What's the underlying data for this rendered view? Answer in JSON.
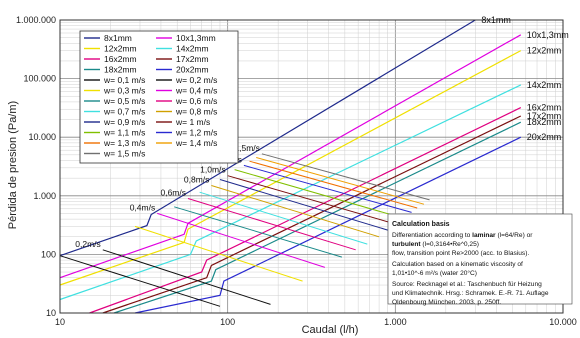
{
  "chart_data": {
    "type": "line",
    "xlabel": "Caudal (l/h)",
    "ylabel": "Pérdida de presion (Pa/m)",
    "x_scale": "log",
    "y_scale": "log",
    "xlim": [
      10,
      10000
    ],
    "ylim": [
      10,
      1000000
    ],
    "grid": true,
    "legend_position": "top-left",
    "x_tick_labels": [
      "10",
      "100",
      "1.000",
      "10.000"
    ],
    "y_tick_labels": [
      "10",
      "100",
      "1.000",
      "10.000",
      "100.000",
      "1.000.000"
    ],
    "series": [
      {
        "name": "8x1mm",
        "color": "#1f2a8c",
        "end_label": "8x1mm",
        "points": [
          [
            10,
            95
          ],
          [
            33,
            310
          ],
          [
            35,
            480
          ],
          [
            3000,
            1000000
          ]
        ]
      },
      {
        "name": "10x1,3mm",
        "color": "#e000e0",
        "end_label": "10x1,3mm",
        "points": [
          [
            10,
            40
          ],
          [
            55,
            220
          ],
          [
            58,
            340
          ],
          [
            5600,
            560000
          ]
        ]
      },
      {
        "name": "12x2mm",
        "color": "#f0e000",
        "end_label": "12x2mm",
        "points": [
          [
            10,
            30
          ],
          [
            55,
            160
          ],
          [
            58,
            270
          ],
          [
            5600,
            300000
          ]
        ]
      },
      {
        "name": "14x2mm",
        "color": "#40e0e0",
        "end_label": "14x2mm",
        "points": [
          [
            10,
            17
          ],
          [
            60,
            100
          ],
          [
            65,
            170
          ],
          [
            5600,
            78000
          ]
        ]
      },
      {
        "name": "16x2mm",
        "color": "#e00080",
        "end_label": "16x2mm",
        "points": [
          [
            15,
            10
          ],
          [
            70,
            50
          ],
          [
            75,
            80
          ],
          [
            5600,
            32000
          ]
        ]
      },
      {
        "name": "17x2mm",
        "color": "#7a1010",
        "end_label": "17x2mm",
        "points": [
          [
            18,
            10
          ],
          [
            75,
            40
          ],
          [
            80,
            65
          ],
          [
            5600,
            23000
          ]
        ]
      },
      {
        "name": "18x2mm",
        "color": "#1a8a8a",
        "end_label": "18x2mm",
        "points": [
          [
            21,
            10
          ],
          [
            80,
            35
          ],
          [
            85,
            55
          ],
          [
            5600,
            18000
          ]
        ]
      },
      {
        "name": "20x2mm",
        "color": "#2a2ad0",
        "end_label": "20x2mm",
        "points": [
          [
            28,
            10
          ],
          [
            90,
            20
          ],
          [
            95,
            35
          ],
          [
            5600,
            10000
          ]
        ]
      }
    ],
    "velocity_lines": [
      {
        "name": "w= 0,1 m/s",
        "color": "#111111",
        "points": [
          [
            10,
            95
          ],
          [
            90,
            13
          ]
        ]
      },
      {
        "name": "w= 0,2 m/s",
        "color": "#111111",
        "label": "0,2m/s",
        "points": [
          [
            18,
            120
          ],
          [
            180,
            14
          ]
        ]
      },
      {
        "name": "w= 0,3 m/s",
        "color": "#f0e000",
        "points": [
          [
            28,
            300
          ],
          [
            280,
            35
          ]
        ]
      },
      {
        "name": "w= 0,4 m/s",
        "color": "#e000e0",
        "label": "0,4m/s",
        "points": [
          [
            38,
            500
          ],
          [
            380,
            60
          ]
        ]
      },
      {
        "name": "w= 0,5 m/s",
        "color": "#1a8a8a",
        "points": [
          [
            48,
            650
          ],
          [
            480,
            90
          ]
        ]
      },
      {
        "name": "w= 0,6 m/s",
        "color": "#e00080",
        "label": "0,6m/s",
        "points": [
          [
            58,
            900
          ],
          [
            580,
            120
          ]
        ]
      },
      {
        "name": "w= 0,7 m/s",
        "color": "#40e0e0",
        "points": [
          [
            68,
            1150
          ],
          [
            680,
            150
          ]
        ]
      },
      {
        "name": "w= 0,8 m/s",
        "color": "#d0a000",
        "label": "0,8m/s",
        "points": [
          [
            80,
            1500
          ],
          [
            800,
            200
          ]
        ]
      },
      {
        "name": "w= 0,9 m/s",
        "color": "#1f2a8c",
        "points": [
          [
            90,
            1900
          ],
          [
            900,
            260
          ]
        ]
      },
      {
        "name": "w= 1 m/s",
        "color": "#7a1010",
        "label": "1,0m/s",
        "points": [
          [
            100,
            2200
          ],
          [
            1000,
            330
          ]
        ]
      },
      {
        "name": "w= 1,1 m/s",
        "color": "#80c000",
        "points": [
          [
            110,
            2800
          ],
          [
            1100,
            420
          ]
        ]
      },
      {
        "name": "w= 1,2 m/s",
        "color": "#2a2ad0",
        "label": "1,2m/s",
        "points": [
          [
            125,
            3300
          ],
          [
            1250,
            520
          ]
        ]
      },
      {
        "name": "w= 1,3 m/s",
        "color": "#f07000",
        "points": [
          [
            135,
            3900
          ],
          [
            1350,
            620
          ]
        ]
      },
      {
        "name": "w= 1,4 m/s",
        "color": "#f0a000",
        "points": [
          [
            148,
            4500
          ],
          [
            1480,
            720
          ]
        ]
      },
      {
        "name": "w= 1,5 m/s",
        "color": "#707070",
        "label": "1,5m/s",
        "points": [
          [
            160,
            5200
          ],
          [
            1600,
            850
          ]
        ]
      }
    ]
  },
  "legend": {
    "left": [
      "8x1mm",
      "12x2mm",
      "16x2mm",
      "18x2mm",
      "w= 0,1 m/s",
      "w= 0,3 m/s",
      "w= 0,5 m/s",
      "w= 0,7 m/s",
      "w= 0,9 m/s",
      "w= 1,1 m/s",
      "w= 1,3 m/s",
      "w= 1,5 m/s"
    ],
    "left_colors": [
      "#1f2a8c",
      "#f0e000",
      "#e00080",
      "#1a8a8a",
      "#111111",
      "#f0e000",
      "#1a8a8a",
      "#40e0e0",
      "#1f2a8c",
      "#80c000",
      "#f07000",
      "#707070"
    ],
    "right": [
      "10x1,3mm",
      "14x2mm",
      "17x2mm",
      "20x2mm",
      "w= 0,2 m/s",
      "w= 0,4 m/s",
      "w= 0,6 m/s",
      "w= 0,8 m/s",
      "w= 1 m/s",
      "w= 1,2 m/s",
      "w= 1,4 m/s"
    ],
    "right_colors": [
      "#e000e0",
      "#40e0e0",
      "#7a1010",
      "#2a2ad0",
      "#111111",
      "#e000e0",
      "#e00080",
      "#d0a000",
      "#7a1010",
      "#2a2ad0",
      "#f0a000"
    ]
  },
  "note": {
    "title": "Calculation basis",
    "line1_pre": "Differentiation according to ",
    "line1_bold": "laminar",
    "line1_post": " (l=64/Re) or",
    "line2_bold": "turbulent",
    "line2_post": " (l=0,3164•Re^0,25)",
    "line3": "flow, transition point Re>2000 (acc. to Blasius).",
    "line4": "Calculation based on a kinematic viscosity of",
    "line5": "1,01•10^-6 m²/s (water 20°C)",
    "line6": "Source: Recknagel et al.: Taschenbuch für Heizung",
    "line7": "und Klimatechnik. Hrsg.: Schramek. E.-R. 71. Auflage",
    "line8": "Oldenbourg München. 2003. p. 250ff."
  }
}
